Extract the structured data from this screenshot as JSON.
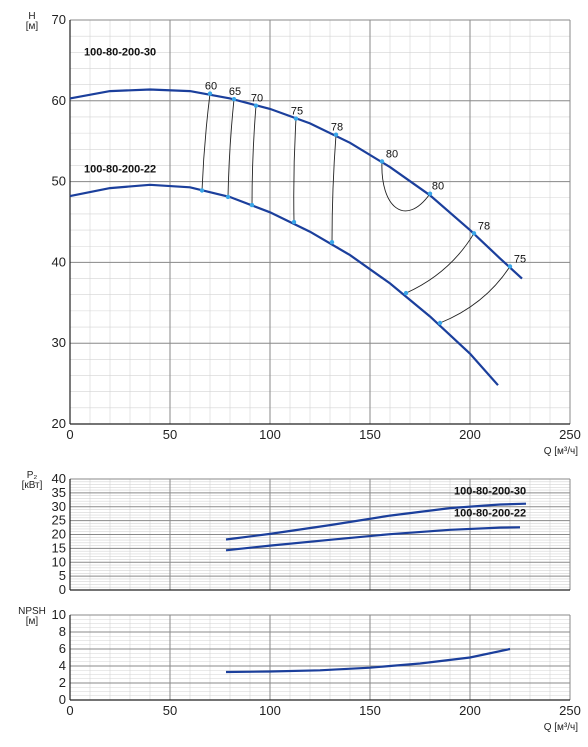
{
  "chart_data": [
    {
      "type": "line",
      "id": "head",
      "ylabel_lines": [
        "H",
        "[м]"
      ],
      "xlabel": "Q [м³/ч]",
      "xlim": [
        0,
        250
      ],
      "ylim": [
        20,
        70
      ],
      "x_ticks": [
        0,
        50,
        100,
        150,
        200,
        250
      ],
      "y_ticks": [
        20,
        30,
        40,
        50,
        60,
        70
      ],
      "grid": "on",
      "series": [
        {
          "name": "100-80-200-30",
          "color": "#1b3f9c",
          "points": [
            [
              0,
              60.3
            ],
            [
              20,
              61.2
            ],
            [
              40,
              61.4
            ],
            [
              60,
              61.2
            ],
            [
              80,
              60.3
            ],
            [
              100,
              59.0
            ],
            [
              120,
              57.2
            ],
            [
              140,
              54.8
            ],
            [
              160,
              51.8
            ],
            [
              180,
              48.3
            ],
            [
              200,
              44.0
            ],
            [
              215,
              40.5
            ],
            [
              226,
              38.0
            ]
          ]
        },
        {
          "name": "100-80-200-22",
          "color": "#1b3f9c",
          "points": [
            [
              0,
              48.2
            ],
            [
              20,
              49.2
            ],
            [
              40,
              49.6
            ],
            [
              60,
              49.3
            ],
            [
              80,
              48.1
            ],
            [
              100,
              46.2
            ],
            [
              120,
              43.8
            ],
            [
              140,
              40.9
            ],
            [
              160,
              37.4
            ],
            [
              180,
              33.3
            ],
            [
              200,
              28.7
            ],
            [
              214,
              24.8
            ]
          ]
        }
      ],
      "efficiency_lines": [
        {
          "label": "60",
          "top": [
            70,
            60.9
          ],
          "bottom": [
            66,
            48.9
          ]
        },
        {
          "label": "65",
          "top": [
            82,
            60.2
          ],
          "bottom": [
            79,
            48.1
          ]
        },
        {
          "label": "70",
          "top": [
            93,
            59.4
          ],
          "bottom": [
            91,
            47.1
          ]
        },
        {
          "label": "75",
          "top": [
            113,
            57.8
          ],
          "bottom": [
            112,
            45.0
          ]
        },
        {
          "label": "78",
          "top": [
            133,
            55.8
          ],
          "bottom": [
            131,
            42.5
          ]
        }
      ],
      "efficiency_loops": [
        {
          "label": "80",
          "top": [
            156,
            52.5
          ],
          "bottom": [
            180,
            48.5
          ]
        },
        {
          "label": "78",
          "top": [
            202,
            43.6
          ],
          "bottom": [
            168,
            36.2
          ]
        },
        {
          "label": "75",
          "top": [
            220,
            39.5
          ],
          "bottom": [
            185,
            32.5
          ]
        }
      ],
      "efficiency_loop_second_label": "80"
    },
    {
      "type": "line",
      "id": "power",
      "ylabel_lines": [
        "P₂",
        "[кВт]"
      ],
      "xlim": [
        0,
        250
      ],
      "ylim": [
        0,
        40
      ],
      "y_ticks": [
        0,
        5,
        10,
        15,
        20,
        25,
        30,
        35,
        40
      ],
      "grid": "on",
      "series": [
        {
          "name": "100-80-200-30",
          "color": "#1b3f9c",
          "points": [
            [
              78,
              18.2
            ],
            [
              100,
              20.2
            ],
            [
              130,
              23.4
            ],
            [
              160,
              26.8
            ],
            [
              190,
              29.5
            ],
            [
              215,
              30.8
            ],
            [
              228,
              31.1
            ]
          ]
        },
        {
          "name": "100-80-200-22",
          "color": "#1b3f9c",
          "points": [
            [
              78,
              14.3
            ],
            [
              100,
              16.0
            ],
            [
              130,
              18.1
            ],
            [
              160,
              20.1
            ],
            [
              190,
              21.7
            ],
            [
              215,
              22.5
            ],
            [
              225,
              22.6
            ]
          ]
        }
      ]
    },
    {
      "type": "line",
      "id": "npsh",
      "ylabel_lines": [
        "NPSH",
        "[м]"
      ],
      "xlabel": "Q [м³/ч]",
      "xlim": [
        0,
        250
      ],
      "ylim": [
        0,
        10
      ],
      "x_ticks": [
        0,
        50,
        100,
        150,
        200,
        250
      ],
      "y_ticks": [
        0,
        2,
        4,
        6,
        8,
        10
      ],
      "grid": "on",
      "series": [
        {
          "name": "",
          "color": "#1b3f9c",
          "points": [
            [
              78,
              3.3
            ],
            [
              100,
              3.35
            ],
            [
              125,
              3.5
            ],
            [
              150,
              3.8
            ],
            [
              175,
              4.3
            ],
            [
              200,
              5.0
            ],
            [
              220,
              6.0
            ]
          ]
        }
      ]
    }
  ]
}
